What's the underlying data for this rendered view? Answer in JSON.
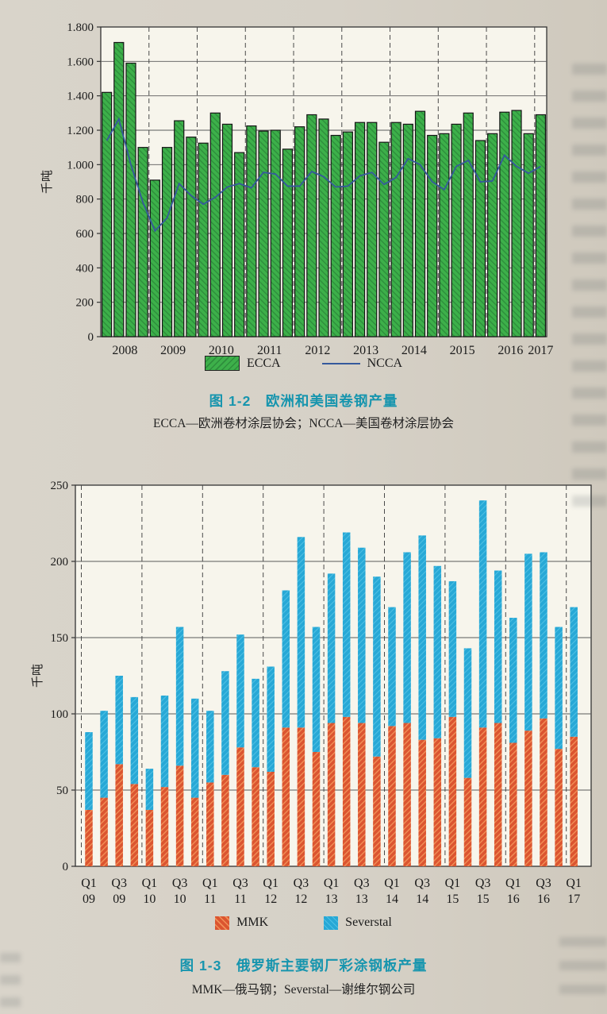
{
  "figure_1_2": {
    "caption": "图 1-2　欧洲和美国卷钢产量",
    "subcaption": "ECCA—欧洲卷材涂层协会；NCCA—美国卷材涂层协会",
    "legend": {
      "bar_label": "ECCA",
      "line_label": "NCCA"
    },
    "colors": {
      "bar": "#3db04a",
      "bar_hatch": "#2e8e3c",
      "bar_outline": "#161616",
      "line": "#35599c",
      "plot_bg": "#f7f5ec",
      "grid": "#5a5a5a"
    },
    "chart_data": {
      "type": "bar",
      "title": "欧洲和美国卷钢产量",
      "ylabel": "千吨",
      "ylim": [
        0,
        1800
      ],
      "ytick_step": 200,
      "ytick_labels": [
        "0",
        "200",
        "400",
        "600",
        "800",
        "1.000",
        "1.200",
        "1.400",
        "1.600",
        "1.800"
      ],
      "years": [
        "2008",
        "2009",
        "2010",
        "2011",
        "2012",
        "2013",
        "2014",
        "2015",
        "2016",
        "2017"
      ],
      "categories": [
        "2008 Q1",
        "2008 Q2",
        "2008 Q3",
        "2008 Q4",
        "2009 Q1",
        "2009 Q2",
        "2009 Q3",
        "2009 Q4",
        "2010 Q1",
        "2010 Q2",
        "2010 Q3",
        "2010 Q4",
        "2011 Q1",
        "2011 Q2",
        "2011 Q3",
        "2011 Q4",
        "2012 Q1",
        "2012 Q2",
        "2012 Q3",
        "2012 Q4",
        "2013 Q1",
        "2013 Q2",
        "2013 Q3",
        "2013 Q4",
        "2014 Q1",
        "2014 Q2",
        "2014 Q3",
        "2014 Q4",
        "2015 Q1",
        "2015 Q2",
        "2015 Q3",
        "2015 Q4",
        "2016 Q1",
        "2016 Q2",
        "2016 Q3",
        "2016 Q4",
        "2017 Q1"
      ],
      "series": [
        {
          "name": "ECCA",
          "type": "bar",
          "values": [
            1420,
            1710,
            1590,
            1100,
            910,
            1100,
            1255,
            1160,
            1125,
            1300,
            1235,
            1070,
            1225,
            1195,
            1200,
            1090,
            1220,
            1290,
            1265,
            1170,
            1190,
            1245,
            1245,
            1130,
            1245,
            1235,
            1310,
            1170,
            1180,
            1235,
            1300,
            1140,
            1180,
            1305,
            1315,
            1180,
            1290
          ]
        },
        {
          "name": "NCCA",
          "type": "line",
          "values": [
            1140,
            1265,
            1000,
            780,
            615,
            690,
            890,
            820,
            770,
            810,
            870,
            890,
            865,
            955,
            945,
            875,
            875,
            960,
            930,
            870,
            875,
            935,
            955,
            885,
            925,
            1035,
            1000,
            900,
            855,
            990,
            1025,
            900,
            905,
            1055,
            990,
            950,
            990
          ]
        }
      ],
      "legend_position": "bottom",
      "grid": true
    }
  },
  "figure_1_3": {
    "caption": "图 1-3　俄罗斯主要钢厂彩涂钢板产量",
    "subcaption": "MMK—俄马钢；Severstal—谢维尔钢公司",
    "legend": {
      "mmk_label": "MMK",
      "severstal_label": "Severstal"
    },
    "colors": {
      "mmk": "#db5530",
      "mmk_hatch": "#f29057",
      "severstal": "#27a8d6",
      "severstal_hatch": "#4fc0e4",
      "plot_bg": "#f7f5ec",
      "grid": "#5a5a5a"
    },
    "chart_data": {
      "type": "bar",
      "stacked": true,
      "title": "俄罗斯主要钢厂彩涂钢板产量",
      "ylabel": "千吨",
      "ylim": [
        0,
        250
      ],
      "ytick_step": 50,
      "ytick_labels": [
        "0",
        "50",
        "100",
        "150",
        "200",
        "250"
      ],
      "categories": [
        "Q1 09",
        "Q2 09",
        "Q3 09",
        "Q4 09",
        "Q1 10",
        "Q2 10",
        "Q3 10",
        "Q4 10",
        "Q1 11",
        "Q2 11",
        "Q3 11",
        "Q4 11",
        "Q1 12",
        "Q2 12",
        "Q3 12",
        "Q4 12",
        "Q1 13",
        "Q2 13",
        "Q3 13",
        "Q4 13",
        "Q1 14",
        "Q2 14",
        "Q3 14",
        "Q4 14",
        "Q1 15",
        "Q2 15",
        "Q3 15",
        "Q4 15",
        "Q1 16",
        "Q2 16",
        "Q3 16",
        "Q4 16",
        "Q1 17"
      ],
      "xtick_labels": [
        [
          "Q1",
          "09"
        ],
        [
          "Q3",
          "09"
        ],
        [
          "Q1",
          "10"
        ],
        [
          "Q3",
          "10"
        ],
        [
          "Q1",
          "11"
        ],
        [
          "Q3",
          "11"
        ],
        [
          "Q1",
          "12"
        ],
        [
          "Q3",
          "12"
        ],
        [
          "Q1",
          "13"
        ],
        [
          "Q3",
          "13"
        ],
        [
          "Q1",
          "14"
        ],
        [
          "Q3",
          "14"
        ],
        [
          "Q1",
          "15"
        ],
        [
          "Q3",
          "15"
        ],
        [
          "Q1",
          "16"
        ],
        [
          "Q3",
          "16"
        ],
        [
          "Q1",
          "17"
        ]
      ],
      "series": [
        {
          "name": "MMK",
          "values": [
            37,
            45,
            67,
            54,
            37,
            52,
            66,
            45,
            55,
            60,
            78,
            65,
            62,
            91,
            91,
            75,
            94,
            98,
            94,
            72,
            92,
            94,
            83,
            84,
            98,
            58,
            91,
            94,
            81,
            89,
            97,
            77,
            85
          ]
        },
        {
          "name": "Severstal",
          "values": [
            51,
            57,
            58,
            57,
            27,
            60,
            91,
            65,
            47,
            68,
            74,
            58,
            69,
            90,
            125,
            82,
            98,
            121,
            115,
            118,
            78,
            112,
            134,
            113,
            89,
            85,
            149,
            100,
            82,
            116,
            109,
            80,
            85
          ]
        }
      ],
      "legend_position": "bottom",
      "grid": true
    }
  }
}
